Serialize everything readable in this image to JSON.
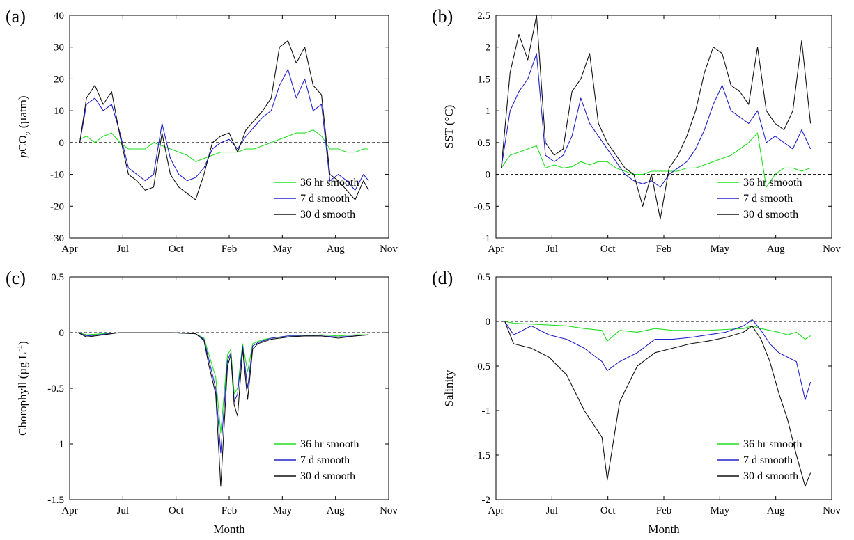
{
  "chart_data": [
    {
      "type": "line",
      "panel_label": "(a)",
      "ylabel_parts": [
        {
          "text": "p",
          "style": "italic"
        },
        {
          "text": "CO",
          "style": "normal"
        },
        {
          "text": "2",
          "style": "sub"
        },
        {
          "text": " (µatm)",
          "style": "normal"
        }
      ],
      "xlabel": "",
      "x_ticks": [
        "Apr",
        "Jul",
        "Oct",
        "Feb",
        "May",
        "Aug",
        "Nov"
      ],
      "xlim": [
        0,
        19
      ],
      "ylim": [
        -30,
        40
      ],
      "y_ticks": [
        -30,
        -20,
        -10,
        0,
        10,
        20,
        30,
        40
      ],
      "reference_line": 0,
      "legend_position": "bottom-right",
      "colors": {
        "36 hr smooth": "#22dd22",
        "7 d smooth": "#2222cc",
        "30 d smooth": "#111111"
      },
      "series": [
        {
          "name": "36 hr smooth",
          "x": [
            0.6,
            1.0,
            1.5,
            2.0,
            2.5,
            3.0,
            3.5,
            4.0,
            4.5,
            5.0,
            5.5,
            6.0,
            6.5,
            7.0,
            7.5,
            8.0,
            8.5,
            9.0,
            9.5,
            10.0,
            10.5,
            11.0,
            11.5,
            12.0,
            12.5,
            13.0,
            13.5,
            14.0,
            14.5,
            15.0,
            15.5,
            16.0,
            16.5,
            17.0,
            17.5,
            17.8
          ],
          "y": [
            1,
            2,
            0,
            2,
            3,
            0,
            -2,
            -2,
            -2,
            0,
            -1,
            -2,
            -3,
            -4,
            -6,
            -5,
            -4,
            -3,
            -3,
            -3,
            -2,
            -2,
            -1,
            0,
            1,
            2,
            3,
            3,
            4,
            2,
            -2,
            -2,
            -3,
            -3,
            -2,
            -2
          ]
        },
        {
          "name": "7 d smooth",
          "x": [
            0.6,
            1.0,
            1.5,
            2.0,
            2.5,
            3.0,
            3.5,
            4.0,
            4.5,
            5.0,
            5.5,
            6.0,
            6.5,
            7.0,
            7.5,
            8.0,
            8.5,
            9.0,
            9.5,
            10.0,
            10.5,
            11.0,
            11.5,
            12.0,
            12.5,
            13.0,
            13.5,
            14.0,
            14.5,
            15.0,
            15.5,
            16.0,
            16.5,
            17.0,
            17.5,
            17.8
          ],
          "y": [
            0,
            12,
            14,
            10,
            12,
            3,
            -8,
            -10,
            -12,
            -10,
            6,
            -5,
            -10,
            -12,
            -11,
            -8,
            -2,
            0,
            1,
            -2,
            2,
            5,
            8,
            10,
            18,
            23,
            14,
            20,
            10,
            12,
            -12,
            -10,
            -12,
            -15,
            -10,
            -12
          ]
        },
        {
          "name": "30 d smooth",
          "x": [
            0.6,
            1.0,
            1.5,
            2.0,
            2.5,
            3.0,
            3.5,
            4.0,
            4.5,
            5.0,
            5.5,
            6.0,
            6.5,
            7.0,
            7.5,
            8.0,
            8.5,
            9.0,
            9.5,
            10.0,
            10.5,
            11.0,
            11.5,
            12.0,
            12.5,
            13.0,
            13.5,
            14.0,
            14.5,
            15.0,
            15.5,
            16.0,
            16.5,
            17.0,
            17.5,
            17.8
          ],
          "y": [
            0,
            14,
            18,
            12,
            16,
            2,
            -10,
            -12,
            -15,
            -14,
            3,
            -10,
            -14,
            -16,
            -18,
            -10,
            0,
            2,
            3,
            -3,
            4,
            7,
            10,
            14,
            30,
            32,
            25,
            30,
            18,
            15,
            -10,
            -12,
            -15,
            -18,
            -12,
            -15
          ]
        }
      ]
    },
    {
      "type": "line",
      "panel_label": "(b)",
      "ylabel_parts": [
        {
          "text": "SST (°C)",
          "style": "normal"
        }
      ],
      "xlabel": "",
      "x_ticks": [
        "Apr",
        "Jul",
        "Oct",
        "Feb",
        "May",
        "Aug",
        "Nov"
      ],
      "xlim": [
        0,
        19
      ],
      "ylim": [
        -1,
        2.5
      ],
      "y_ticks": [
        -1,
        -0.5,
        0,
        0.5,
        1,
        1.5,
        2,
        2.5
      ],
      "reference_line": 0,
      "legend_position": "bottom-right",
      "colors": {
        "36 hr smooth": "#22dd22",
        "7 d smooth": "#2222cc",
        "30 d smooth": "#111111"
      },
      "series": [
        {
          "name": "36 hr smooth",
          "x": [
            0.3,
            0.8,
            1.3,
            1.8,
            2.3,
            2.8,
            3.3,
            3.8,
            4.3,
            4.8,
            5.3,
            5.8,
            6.3,
            6.8,
            7.3,
            7.8,
            8.3,
            8.8,
            9.3,
            9.8,
            10.3,
            10.8,
            11.3,
            11.8,
            12.3,
            12.8,
            13.3,
            13.8,
            14.3,
            14.8,
            15.3,
            15.8,
            16.3,
            16.8,
            17.3,
            17.8
          ],
          "y": [
            0.1,
            0.3,
            0.35,
            0.4,
            0.45,
            0.1,
            0.15,
            0.1,
            0.12,
            0.2,
            0.15,
            0.2,
            0.2,
            0.1,
            0.05,
            0.0,
            0.0,
            0.05,
            0.05,
            0.05,
            0.05,
            0.1,
            0.1,
            0.15,
            0.2,
            0.25,
            0.3,
            0.4,
            0.5,
            0.65,
            -0.2,
            0.0,
            0.1,
            0.1,
            0.05,
            0.1
          ]
        },
        {
          "name": "7 d smooth",
          "x": [
            0.3,
            0.8,
            1.3,
            1.8,
            2.3,
            2.8,
            3.3,
            3.8,
            4.3,
            4.8,
            5.3,
            5.8,
            6.3,
            6.8,
            7.3,
            7.8,
            8.3,
            8.8,
            9.3,
            9.8,
            10.3,
            10.8,
            11.3,
            11.8,
            12.3,
            12.8,
            13.3,
            13.8,
            14.3,
            14.8,
            15.3,
            15.8,
            16.3,
            16.8,
            17.3,
            17.8
          ],
          "y": [
            0.1,
            1.0,
            1.3,
            1.5,
            1.9,
            0.3,
            0.2,
            0.3,
            0.6,
            1.2,
            0.8,
            0.6,
            0.4,
            0.2,
            0.0,
            -0.1,
            -0.15,
            -0.1,
            -0.2,
            0.0,
            0.1,
            0.2,
            0.4,
            0.7,
            1.1,
            1.4,
            1.0,
            0.9,
            0.8,
            1.0,
            0.5,
            0.6,
            0.5,
            0.4,
            0.7,
            0.4
          ]
        },
        {
          "name": "30 d smooth",
          "x": [
            0.3,
            0.8,
            1.3,
            1.8,
            2.3,
            2.8,
            3.3,
            3.8,
            4.3,
            4.8,
            5.3,
            5.8,
            6.3,
            6.8,
            7.3,
            7.8,
            8.3,
            8.8,
            9.3,
            9.8,
            10.3,
            10.8,
            11.3,
            11.8,
            12.3,
            12.8,
            13.3,
            13.8,
            14.3,
            14.8,
            15.3,
            15.8,
            16.3,
            16.8,
            17.3,
            17.8
          ],
          "y": [
            0.1,
            1.6,
            2.2,
            1.8,
            2.5,
            0.5,
            0.3,
            0.4,
            1.3,
            1.5,
            1.9,
            0.8,
            0.5,
            0.3,
            0.1,
            0.0,
            -0.5,
            0.0,
            -0.7,
            0.1,
            0.3,
            0.6,
            1.0,
            1.6,
            2.0,
            1.9,
            1.4,
            1.3,
            1.1,
            2.0,
            1.0,
            0.8,
            0.7,
            1.0,
            2.1,
            0.8
          ]
        }
      ]
    },
    {
      "type": "line",
      "panel_label": "(c)",
      "ylabel_parts": [
        {
          "text": "Chorophyll (µg L",
          "style": "normal"
        },
        {
          "text": "-1",
          "style": "super"
        },
        {
          "text": ")",
          "style": "normal"
        }
      ],
      "xlabel": "Month",
      "x_ticks": [
        "Apr",
        "Jul",
        "Oct",
        "Feb",
        "May",
        "Aug",
        "Nov"
      ],
      "xlim": [
        0,
        19
      ],
      "ylim": [
        -1.5,
        0.5
      ],
      "y_ticks": [
        -1.5,
        -1,
        -0.5,
        0,
        0.5
      ],
      "reference_line": 0,
      "legend_position": "bottom-right",
      "colors": {
        "36 hr smooth": "#22dd22",
        "7 d smooth": "#2222cc",
        "30 d smooth": "#111111"
      },
      "series": [
        {
          "name": "36 hr smooth",
          "x": [
            0.5,
            1.0,
            3.0,
            6.0,
            7.5,
            8.0,
            8.3,
            8.7,
            9.0,
            9.4,
            9.6,
            9.8,
            10.0,
            10.3,
            10.6,
            10.9,
            11.2,
            11.6,
            12.0,
            13.0,
            14.0,
            15.0,
            16.0,
            17.0,
            17.8
          ],
          "y": [
            0,
            -0.02,
            0,
            0,
            -0.01,
            -0.05,
            -0.2,
            -0.4,
            -0.9,
            -0.2,
            -0.15,
            -0.55,
            -0.5,
            -0.1,
            -0.35,
            -0.1,
            -0.08,
            -0.06,
            -0.05,
            -0.03,
            -0.03,
            -0.02,
            -0.03,
            -0.02,
            -0.02
          ]
        },
        {
          "name": "7 d smooth",
          "x": [
            0.5,
            1.0,
            3.0,
            6.0,
            7.5,
            8.0,
            8.3,
            8.7,
            9.0,
            9.4,
            9.6,
            9.8,
            10.0,
            10.3,
            10.6,
            10.9,
            11.2,
            11.6,
            12.0,
            13.0,
            14.0,
            15.0,
            16.0,
            17.0,
            17.8
          ],
          "y": [
            0,
            -0.03,
            0,
            0,
            -0.01,
            -0.06,
            -0.25,
            -0.5,
            -1.08,
            -0.25,
            -0.18,
            -0.62,
            -0.55,
            -0.12,
            -0.5,
            -0.12,
            -0.09,
            -0.07,
            -0.05,
            -0.03,
            -0.03,
            -0.03,
            -0.04,
            -0.03,
            -0.02
          ]
        },
        {
          "name": "30 d smooth",
          "x": [
            0.5,
            1.0,
            3.0,
            6.0,
            7.5,
            8.0,
            8.3,
            8.7,
            9.0,
            9.4,
            9.6,
            9.8,
            10.0,
            10.3,
            10.6,
            10.9,
            11.2,
            11.6,
            12.0,
            13.0,
            14.0,
            15.0,
            16.0,
            17.0,
            17.8
          ],
          "y": [
            0,
            -0.04,
            0,
            0,
            -0.01,
            -0.07,
            -0.3,
            -0.55,
            -1.38,
            -0.3,
            -0.2,
            -0.65,
            -0.75,
            -0.15,
            -0.6,
            -0.15,
            -0.1,
            -0.08,
            -0.06,
            -0.04,
            -0.03,
            -0.03,
            -0.05,
            -0.03,
            -0.02
          ]
        }
      ]
    },
    {
      "type": "line",
      "panel_label": "(d)",
      "ylabel_parts": [
        {
          "text": "Salinity",
          "style": "normal"
        }
      ],
      "xlabel": "Month",
      "x_ticks": [
        "Apr",
        "Jul",
        "Oct",
        "Feb",
        "May",
        "Aug",
        "Nov"
      ],
      "xlim": [
        0,
        19
      ],
      "ylim": [
        -2,
        0.5
      ],
      "y_ticks": [
        -2,
        -1.5,
        -1,
        -0.5,
        0,
        0.5
      ],
      "reference_line": 0,
      "legend_position": "bottom-right",
      "colors": {
        "36 hr smooth": "#22dd22",
        "7 d smooth": "#2222cc",
        "30 d smooth": "#111111"
      },
      "series": [
        {
          "name": "36 hr smooth",
          "x": [
            0.5,
            1.0,
            2.0,
            3.0,
            4.0,
            5.0,
            6.0,
            6.3,
            7.0,
            8.0,
            9.0,
            10.0,
            11.0,
            12.0,
            13.0,
            14.0,
            14.5,
            15.0,
            15.5,
            16.0,
            16.5,
            17.0,
            17.5,
            17.8
          ],
          "y": [
            0,
            -0.02,
            -0.03,
            -0.04,
            -0.05,
            -0.08,
            -0.1,
            -0.22,
            -0.1,
            -0.12,
            -0.08,
            -0.1,
            -0.1,
            -0.1,
            -0.09,
            -0.08,
            -0.05,
            -0.08,
            -0.1,
            -0.12,
            -0.15,
            -0.12,
            -0.2,
            -0.16
          ]
        },
        {
          "name": "7 d smooth",
          "x": [
            0.5,
            1.0,
            2.0,
            3.0,
            4.0,
            5.0,
            6.0,
            6.3,
            7.0,
            8.0,
            9.0,
            10.0,
            11.0,
            12.0,
            13.0,
            14.0,
            14.5,
            15.0,
            15.5,
            16.0,
            16.5,
            17.0,
            17.5,
            17.8
          ],
          "y": [
            0,
            -0.15,
            -0.05,
            -0.15,
            -0.2,
            -0.3,
            -0.45,
            -0.55,
            -0.45,
            -0.35,
            -0.2,
            -0.2,
            -0.18,
            -0.15,
            -0.12,
            -0.05,
            0.02,
            -0.1,
            -0.25,
            -0.35,
            -0.4,
            -0.45,
            -0.88,
            -0.68
          ]
        },
        {
          "name": "30 d smooth",
          "x": [
            0.5,
            1.0,
            2.0,
            3.0,
            4.0,
            5.0,
            6.0,
            6.3,
            7.0,
            8.0,
            9.0,
            10.0,
            11.0,
            12.0,
            13.0,
            14.0,
            14.5,
            15.0,
            15.5,
            16.0,
            16.5,
            17.0,
            17.5,
            17.8
          ],
          "y": [
            0,
            -0.25,
            -0.3,
            -0.4,
            -0.6,
            -1.0,
            -1.3,
            -1.78,
            -0.9,
            -0.5,
            -0.35,
            -0.3,
            -0.25,
            -0.22,
            -0.18,
            -0.12,
            -0.05,
            -0.2,
            -0.45,
            -0.8,
            -1.1,
            -1.5,
            -1.85,
            -1.7
          ]
        }
      ]
    }
  ]
}
